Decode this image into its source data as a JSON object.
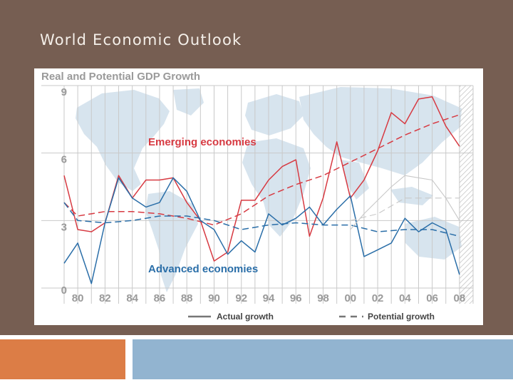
{
  "slide": {
    "title": "World Economic Outlook",
    "colors": {
      "background": "#765e52",
      "orange_block": "#dc7d46",
      "blue_block": "#92b4d0"
    }
  },
  "chart_data": {
    "type": "line",
    "title": "Real and Potential GDP Growth",
    "xlabel": "",
    "ylabel": "",
    "x_range": [
      1979,
      2009
    ],
    "ylim": [
      0,
      9
    ],
    "y_ticks": [
      0,
      3,
      6,
      9
    ],
    "x_tick_labels": [
      "80",
      "82",
      "84",
      "86",
      "88",
      "90",
      "92",
      "94",
      "96",
      "98",
      "00",
      "02",
      "04",
      "06",
      "08"
    ],
    "x_tick_values": [
      1980,
      1982,
      1984,
      1986,
      1988,
      1990,
      1992,
      1994,
      1996,
      1998,
      2000,
      2002,
      2004,
      2006,
      2008
    ],
    "grid": "vertical",
    "background_image": "world-map",
    "shaded_region": [
      2008,
      2009
    ],
    "annotations": [
      {
        "text": "Emerging economies",
        "color": "#d73a42"
      },
      {
        "text": "Advanced economies",
        "color": "#2a6ea8"
      }
    ],
    "legend": {
      "placement": "bottom",
      "entries": [
        {
          "label": "Actual growth",
          "style": "solid"
        },
        {
          "label": "Potential growth",
          "style": "dashed"
        }
      ]
    },
    "series": [
      {
        "group": "Emerging economies",
        "kind": "actual",
        "color": "#d73a42",
        "dash": false,
        "x": [
          1979,
          1980,
          1981,
          1982,
          1983,
          1984,
          1985,
          1986,
          1987,
          1988,
          1989,
          1990,
          1991,
          1992,
          1993,
          1994,
          1995,
          1996,
          1997,
          1998,
          1999,
          2000,
          2001,
          2002,
          2003,
          2004,
          2005,
          2006,
          2007,
          2008
        ],
        "values": [
          5.0,
          2.6,
          2.5,
          2.9,
          5.0,
          4.0,
          4.8,
          4.8,
          4.9,
          3.8,
          3.0,
          1.2,
          1.6,
          3.9,
          3.9,
          4.8,
          5.4,
          5.7,
          2.3,
          4.0,
          6.5,
          4.0,
          4.8,
          6.1,
          7.8,
          7.3,
          8.4,
          8.5,
          7.2,
          6.3
        ]
      },
      {
        "group": "Emerging economies",
        "kind": "potential",
        "color": "#d73a42",
        "dash": true,
        "x": [
          1979,
          1980,
          1982,
          1984,
          1986,
          1988,
          1990,
          1992,
          1994,
          1996,
          1998,
          2000,
          2002,
          2004,
          2006,
          2008
        ],
        "values": [
          3.8,
          3.2,
          3.4,
          3.4,
          3.3,
          3.1,
          2.8,
          3.3,
          4.1,
          4.6,
          5.0,
          5.6,
          6.2,
          6.8,
          7.3,
          7.7
        ]
      },
      {
        "group": "Advanced economies",
        "kind": "actual",
        "color": "#2a6ea8",
        "dash": false,
        "x": [
          1979,
          1980,
          1981,
          1982,
          1983,
          1984,
          1985,
          1986,
          1987,
          1988,
          1989,
          1990,
          1991,
          1992,
          1993,
          1994,
          1995,
          1996,
          1997,
          1998,
          1999,
          2000,
          2001,
          2002,
          2003,
          2004,
          2005,
          2006,
          2007,
          2008
        ],
        "values": [
          1.1,
          2.0,
          0.2,
          2.9,
          4.9,
          4.0,
          3.6,
          3.8,
          4.9,
          4.3,
          3.0,
          2.6,
          1.5,
          2.1,
          1.6,
          3.3,
          2.8,
          3.1,
          3.6,
          2.8,
          3.5,
          4.1,
          1.4,
          1.7,
          2.0,
          3.1,
          2.5,
          2.9,
          2.6,
          0.6
        ]
      },
      {
        "group": "Advanced economies",
        "kind": "potential",
        "color": "#2a6ea8",
        "dash": true,
        "x": [
          1979,
          1980,
          1982,
          1984,
          1986,
          1988,
          1990,
          1992,
          1994,
          1996,
          1998,
          2000,
          2002,
          2004,
          2006,
          2008
        ],
        "values": [
          3.8,
          3.0,
          2.9,
          3.0,
          3.2,
          3.2,
          3.0,
          2.6,
          2.8,
          2.9,
          2.8,
          2.8,
          2.5,
          2.6,
          2.6,
          2.3
        ]
      },
      {
        "group": "",
        "kind": "faint",
        "color": "#c8c8c8",
        "dash": false,
        "x": [
          2000,
          2001,
          2002,
          2003,
          2004,
          2005,
          2006,
          2007,
          2008
        ],
        "values": [
          2.6,
          3.3,
          3.9,
          4.5,
          5.0,
          4.9,
          4.8,
          4.0,
          3.0
        ]
      },
      {
        "group": "",
        "kind": "faint",
        "color": "#c8c8c8",
        "dash": true,
        "x": [
          2000,
          2002,
          2004,
          2006,
          2008
        ],
        "values": [
          3.0,
          3.3,
          4.0,
          4.0,
          4.0
        ]
      }
    ]
  }
}
